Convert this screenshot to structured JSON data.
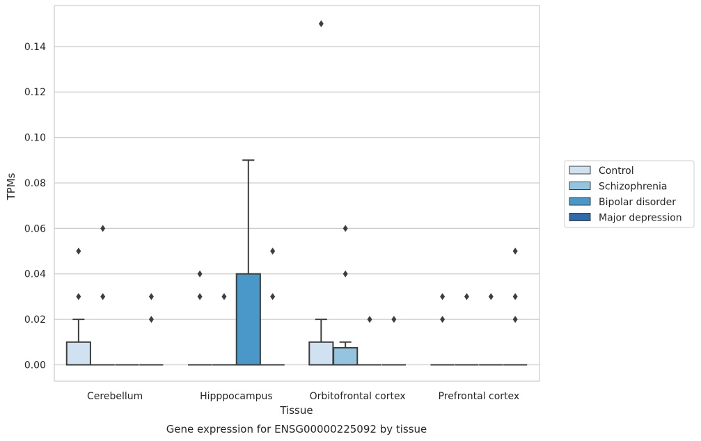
{
  "chart_data": {
    "type": "box",
    "title": "Gene expression for ENSG00000225092 by tissue",
    "xlabel": "Tissue",
    "ylabel": "TPMs",
    "ylim": [
      -0.0072,
      0.158
    ],
    "yticks": [
      0.0,
      0.02,
      0.04,
      0.06,
      0.08,
      0.1,
      0.12,
      0.14
    ],
    "ytick_labels": [
      "0.00",
      "0.02",
      "0.04",
      "0.06",
      "0.08",
      "0.10",
      "0.12",
      "0.14"
    ],
    "grid": true,
    "legend_placement": "right",
    "categories": [
      "Cerebellum",
      "Hipppocampus",
      "Orbitofrontal cortex",
      "Prefrontal cortex"
    ],
    "series": [
      {
        "name": "Control",
        "color": "#d0e1f2",
        "boxes": [
          {
            "q1": 0.0,
            "median": 0.0,
            "q3": 0.01,
            "whisker_low": 0.0,
            "whisker_high": 0.02,
            "outliers": [
              0.03,
              0.05
            ]
          },
          {
            "q1": 0.0,
            "median": 0.0,
            "q3": 0.0,
            "whisker_low": 0.0,
            "whisker_high": 0.0,
            "outliers": [
              0.03,
              0.04
            ]
          },
          {
            "q1": 0.0,
            "median": 0.0,
            "q3": 0.01,
            "whisker_low": 0.0,
            "whisker_high": 0.02,
            "outliers": [
              0.15
            ]
          },
          {
            "q1": 0.0,
            "median": 0.0,
            "q3": 0.0,
            "whisker_low": 0.0,
            "whisker_high": 0.0,
            "outliers": [
              0.02,
              0.03
            ]
          }
        ]
      },
      {
        "name": "Schizophrenia",
        "color": "#94c4df",
        "boxes": [
          {
            "q1": 0.0,
            "median": 0.0,
            "q3": 0.0,
            "whisker_low": 0.0,
            "whisker_high": 0.0,
            "outliers": [
              0.03,
              0.06
            ]
          },
          {
            "q1": 0.0,
            "median": 0.0,
            "q3": 0.0,
            "whisker_low": 0.0,
            "whisker_high": 0.0,
            "outliers": [
              0.03
            ]
          },
          {
            "q1": 0.0,
            "median": 0.0,
            "q3": 0.0075,
            "whisker_low": 0.0,
            "whisker_high": 0.01,
            "outliers": [
              0.04,
              0.06
            ]
          },
          {
            "q1": 0.0,
            "median": 0.0,
            "q3": 0.0,
            "whisker_low": 0.0,
            "whisker_high": 0.0,
            "outliers": [
              0.03
            ]
          }
        ]
      },
      {
        "name": "Bipolar disorder",
        "color": "#4a98c9",
        "boxes": [
          {
            "q1": 0.0,
            "median": 0.0,
            "q3": 0.0,
            "whisker_low": 0.0,
            "whisker_high": 0.0,
            "outliers": []
          },
          {
            "q1": 0.0,
            "median": 0.0,
            "q3": 0.04,
            "whisker_low": 0.0,
            "whisker_high": 0.09,
            "outliers": []
          },
          {
            "q1": 0.0,
            "median": 0.0,
            "q3": 0.0,
            "whisker_low": 0.0,
            "whisker_high": 0.0,
            "outliers": [
              0.02
            ]
          },
          {
            "q1": 0.0,
            "median": 0.0,
            "q3": 0.0,
            "whisker_low": 0.0,
            "whisker_high": 0.0,
            "outliers": [
              0.03
            ]
          }
        ]
      },
      {
        "name": "Major depression",
        "color": "#2e6ba8",
        "boxes": [
          {
            "q1": 0.0,
            "median": 0.0,
            "q3": 0.0,
            "whisker_low": 0.0,
            "whisker_high": 0.0,
            "outliers": [
              0.02,
              0.03
            ]
          },
          {
            "q1": 0.0,
            "median": 0.0,
            "q3": 0.0,
            "whisker_low": 0.0,
            "whisker_high": 0.0,
            "outliers": [
              0.03,
              0.05
            ]
          },
          {
            "q1": 0.0,
            "median": 0.0,
            "q3": 0.0,
            "whisker_low": 0.0,
            "whisker_high": 0.0,
            "outliers": [
              0.02
            ]
          },
          {
            "q1": 0.0,
            "median": 0.0,
            "q3": 0.0,
            "whisker_low": 0.0,
            "whisker_high": 0.0,
            "outliers": [
              0.02,
              0.03,
              0.05
            ]
          }
        ]
      }
    ]
  }
}
